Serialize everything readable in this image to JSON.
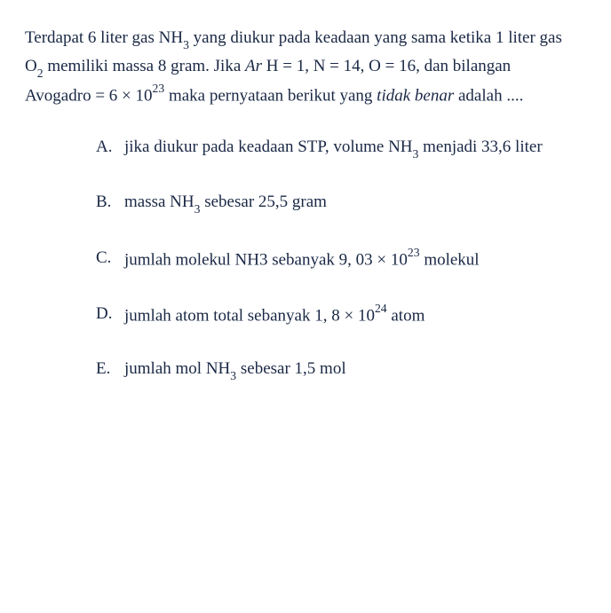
{
  "colors": {
    "text": "#1a2845",
    "background": "#ffffff"
  },
  "typography": {
    "font_family": "Georgia, 'Times New Roman', serif",
    "body_fontsize": 19,
    "line_height": 1.6
  },
  "question": {
    "part1": "Terdapat 6 liter gas NH",
    "sub1": "3",
    "part2": " yang diukur pada keadaan yang sama ketika 1 liter gas O",
    "sub2": "2",
    "part3": " memiliki massa 8 gram. Jika ",
    "italic1": "Ar",
    "part4": " H = 1, N = 14, O = 16, dan bilangan Avogadro = 6 × 10",
    "sup1": "23",
    "part5": " maka pernyataan berikut yang ",
    "italic2": "tidak benar",
    "part6": " adalah ...."
  },
  "options": {
    "A": {
      "letter": "A.",
      "p1": "jika diukur pada keadaan STP, volume NH",
      "sub1": "3",
      "p2": " menjadi 33,6 liter"
    },
    "B": {
      "letter": "B.",
      "p1": "massa NH",
      "sub1": "3",
      "p2": " sebesar 25,5 gram"
    },
    "C": {
      "letter": "C.",
      "p1": "jumlah molekul NH3 sebanyak 9, 03 × 10",
      "sup1": "23",
      "p2": " molekul"
    },
    "D": {
      "letter": "D.",
      "p1": "jumlah atom total sebanyak 1, 8 × 10",
      "sup1": "24",
      "p2": " atom"
    },
    "E": {
      "letter": "E.",
      "p1": "jumlah mol NH",
      "sub1": "3",
      "p2": " sebesar 1,5 mol"
    }
  }
}
